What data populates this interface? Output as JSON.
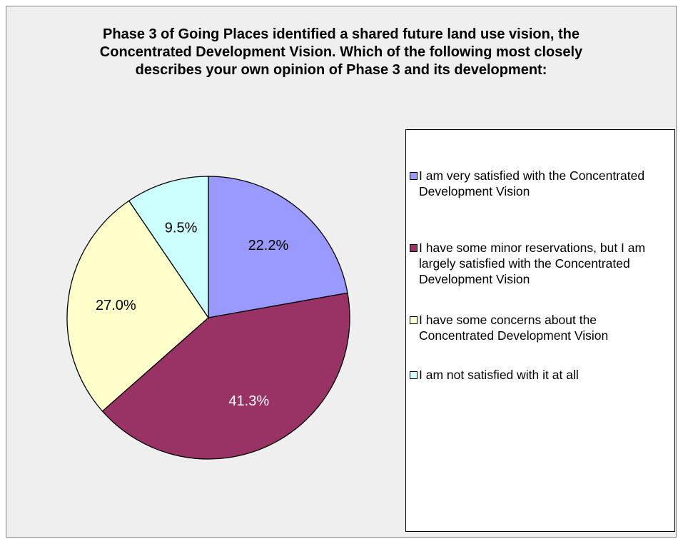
{
  "chart_data": {
    "type": "pie",
    "title": "Phase 3  of Going Places identified a shared future land use vision, the Concentrated Development Vision.  Which of the following most closely describes your own opinion of Phase 3 and its development:",
    "categories": [
      "I am very satisfied with the Concentrated Development Vision",
      "I have some minor reservations, but I am largely satisfied with the Concentrated Development Vision",
      "I have some concerns about the Concentrated Development Vision",
      "I am not satisfied with it at all"
    ],
    "values": [
      22.2,
      41.3,
      27.0,
      9.5
    ],
    "value_labels": [
      "22.2%",
      "41.3%",
      "27.0%",
      "9.5%"
    ],
    "colors": [
      "#9999ff",
      "#993366",
      "#ffffcc",
      "#ccffff"
    ],
    "legend": "right"
  }
}
